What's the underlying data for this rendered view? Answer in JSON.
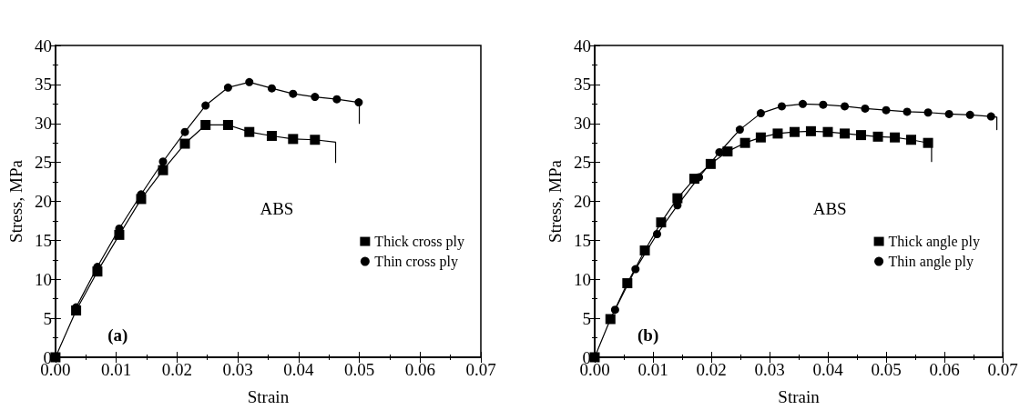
{
  "chart_data": [
    {
      "type": "line",
      "xlabel": "Strain",
      "ylabel": "Stress, MPa",
      "annotations": [
        "ABS",
        "(a)"
      ],
      "xlim": [
        0,
        0.07
      ],
      "xticks": [
        {
          "value": 0,
          "label": "0.00"
        },
        0.01,
        0.02,
        0.03,
        0.04,
        0.05,
        0.06,
        0.07
      ],
      "ylim": [
        0,
        40
      ],
      "yticks": [
        0,
        5,
        10,
        15,
        20,
        25,
        30,
        35,
        40
      ],
      "grid": false,
      "legend": "right",
      "line_style": "solid",
      "series": [
        {
          "name": "Thick cross ply",
          "color": "#000000",
          "marker": "square",
          "x": [
            0,
            0.0034,
            0.0069,
            0.0105,
            0.0141,
            0.0177,
            0.0213,
            0.0247,
            0.0284,
            0.0319,
            0.0356,
            0.0391,
            0.0427
          ],
          "values": [
            0,
            6.0,
            11.0,
            15.7,
            20.3,
            24.0,
            27.4,
            29.8,
            29.8,
            28.9,
            28.4,
            28.0,
            27.9
          ]
        },
        {
          "name": "Thin cross ply",
          "color": "#000000",
          "marker": "circle",
          "x": [
            0.0034,
            0.0069,
            0.0105,
            0.0141,
            0.0177,
            0.0213,
            0.0247,
            0.0284,
            0.0319,
            0.0356,
            0.0391,
            0.0427,
            0.0463,
            0.0499
          ],
          "values": [
            6.4,
            11.6,
            16.5,
            20.9,
            25.1,
            28.9,
            32.3,
            34.6,
            35.3,
            34.5,
            33.8,
            33.4,
            33.1,
            32.7
          ]
        },
        {
          "color": "#000000",
          "marker": "none",
          "x": [
            0.0427,
            0.0461,
            0.0461
          ],
          "values": [
            27.9,
            27.6,
            25.0
          ]
        },
        {
          "color": "#000000",
          "marker": "none",
          "x": [
            0.0499,
            0.05,
            0.05
          ],
          "values": [
            32.7,
            32.6,
            30.0
          ]
        }
      ]
    },
    {
      "type": "line",
      "xlabel": "Strain",
      "ylabel": "Stress, MPa",
      "annotations": [
        "ABS",
        "(b)"
      ],
      "xlim": [
        0,
        0.07
      ],
      "xticks": [
        {
          "value": 0,
          "label": "0.00"
        },
        0.01,
        0.02,
        0.03,
        0.04,
        0.05,
        0.06,
        0.07
      ],
      "ylim": [
        0,
        40
      ],
      "yticks": [
        0,
        5,
        10,
        15,
        20,
        25,
        30,
        35,
        40
      ],
      "grid": false,
      "legend": "right",
      "line_style": "solid",
      "series": [
        {
          "name": "Thick angle ply",
          "color": "#000000",
          "marker": "square",
          "x": [
            0,
            0.0027,
            0.0056,
            0.0086,
            0.0114,
            0.0142,
            0.0171,
            0.0199,
            0.0228,
            0.0258,
            0.0285,
            0.0314,
            0.0343,
            0.0371,
            0.04,
            0.0429,
            0.0457,
            0.0486,
            0.0515,
            0.0543,
            0.0572
          ],
          "values": [
            0,
            4.9,
            9.5,
            13.7,
            17.3,
            20.4,
            22.9,
            24.8,
            26.4,
            27.5,
            28.2,
            28.7,
            28.9,
            29.0,
            28.9,
            28.7,
            28.5,
            28.3,
            28.2,
            27.9,
            27.5
          ]
        },
        {
          "name": "Thin angle ply",
          "color": "#000000",
          "marker": "circle",
          "x": [
            0.0035,
            0.007,
            0.0107,
            0.0142,
            0.0179,
            0.0214,
            0.0249,
            0.0285,
            0.0321,
            0.0357,
            0.0392,
            0.0429,
            0.0464,
            0.05,
            0.0536,
            0.0572,
            0.0608,
            0.0644,
            0.068
          ],
          "values": [
            6.1,
            11.3,
            15.8,
            19.5,
            23.1,
            26.3,
            29.2,
            31.3,
            32.2,
            32.5,
            32.4,
            32.2,
            31.9,
            31.7,
            31.5,
            31.4,
            31.2,
            31.1,
            30.9
          ]
        },
        {
          "color": "#000000",
          "marker": "none",
          "x": [
            0.0572,
            0.0578,
            0.0578
          ],
          "values": [
            27.5,
            27.1,
            25.1
          ]
        },
        {
          "color": "#000000",
          "marker": "none",
          "x": [
            0.068,
            0.069,
            0.069
          ],
          "values": [
            30.9,
            30.8,
            29.2
          ]
        }
      ]
    }
  ]
}
